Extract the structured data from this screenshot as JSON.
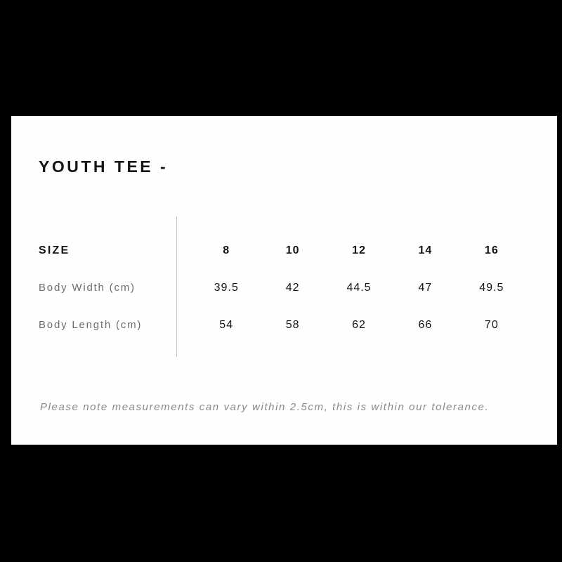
{
  "card": {
    "title": "YOUTH TEE -",
    "note": "Please note measurements can vary within 2.5cm, this is within our tolerance."
  },
  "table": {
    "header_label": "SIZE",
    "sizes": [
      "8",
      "10",
      "12",
      "14",
      "16"
    ],
    "rows": [
      {
        "label": "Body Width (cm)",
        "values": [
          "39.5",
          "42",
          "44.5",
          "47",
          "49.5"
        ]
      },
      {
        "label": "Body Length (cm)",
        "values": [
          "54",
          "58",
          "62",
          "66",
          "70"
        ]
      }
    ]
  },
  "colors": {
    "page_background": "#000000",
    "card_background": "#fefefe",
    "heading_text": "#161616",
    "value_text": "#141414",
    "label_text": "#6e6e6e",
    "note_text": "#8a8a8a",
    "divider": "#c6c6c6"
  }
}
